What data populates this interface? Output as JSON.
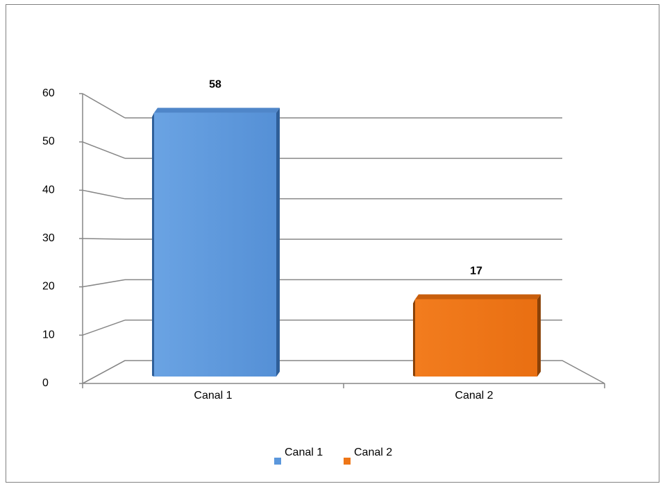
{
  "chart_data": {
    "type": "bar",
    "categories": [
      "Canal 1",
      "Canal 2"
    ],
    "values": [
      58,
      17
    ],
    "y_ticks": [
      "0",
      "10",
      "20",
      "30",
      "40",
      "50",
      "60"
    ],
    "ylim": [
      0,
      60
    ],
    "grid": true,
    "legend_position": "bottom",
    "series": [
      {
        "name": "Canal 1",
        "color": "#5b97dc",
        "value_label": "58"
      },
      {
        "name": "Canal 2",
        "color": "#ee7617",
        "value_label": "17"
      }
    ]
  }
}
